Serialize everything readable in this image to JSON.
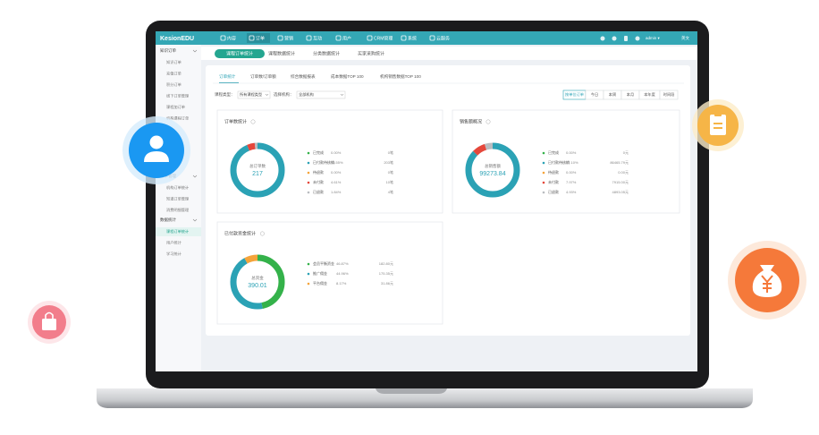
{
  "nav": {
    "brand": "KesionEDU",
    "items": [
      "内容",
      "订单",
      "营销",
      "互动",
      "用户",
      "CRM管理",
      "系统",
      "云服务"
    ],
    "active": 1,
    "user": "admin ▾",
    "lang": "英文"
  },
  "sidebar": {
    "groups": [
      {
        "title": "知识订单",
        "items": [
          "知识订单",
          "充值订单",
          "积分订单",
          "线下订单管理",
          "课程加订单",
          "机构课程订单"
        ]
      },
      {
        "title": "订单管理",
        "items": [
          "机构订单统计",
          "知道订单管理",
          "消费明细管理"
        ]
      },
      {
        "title": "数据统计",
        "items": [
          "课程订单统计",
          "用户统计",
          "学习统计"
        ],
        "active": 0
      }
    ]
  },
  "tabs": {
    "items": [
      "课程订单统计",
      "课程数据统计",
      "分类数据统计",
      "买家采购统计"
    ],
    "active": 0
  },
  "subtabs": {
    "items": [
      "订单统计",
      "订单数/订单额",
      "综合数据报表",
      "成本数据TOP 100",
      "机构销售数据TOP 100"
    ],
    "active": 0
  },
  "filters": [
    {
      "label": "课程类型：",
      "value": "所有课程类型"
    },
    {
      "label": "选择机构：",
      "value": "全部机构"
    }
  ],
  "ranges": {
    "items": [
      "按单位订单",
      "今日",
      "本周",
      "本月",
      "本年度",
      "时间段"
    ],
    "active": 0
  },
  "cards": [
    {
      "title": "订单数统计",
      "center_label": "总订单数",
      "center_value": "217",
      "segments": [
        {
          "name": "已完成",
          "color": "#34b24a",
          "value": 0,
          "label": "0.00%",
          "amount": "0笔"
        },
        {
          "name": "已付款待核销",
          "color": "#2ba2b5",
          "value": 93.55,
          "label": "93.55%",
          "amount": "203笔"
        },
        {
          "name": "待退款",
          "color": "#f5a43a",
          "value": 0,
          "label": "0.00%",
          "amount": "0笔"
        },
        {
          "name": "未付款",
          "color": "#e5473b",
          "value": 4.61,
          "label": "4.61%",
          "amount": "10笔"
        },
        {
          "name": "已退款",
          "color": "#b9bcc0",
          "value": 1.84,
          "label": "1.84%",
          "amount": "4笔"
        }
      ]
    },
    {
      "title": "销售额概况",
      "center_label": "总销售额",
      "center_value": "99273.84",
      "segments": [
        {
          "name": "已完成",
          "color": "#34b24a",
          "value": 0,
          "label": "0.00%",
          "amount": "0元"
        },
        {
          "name": "已付款待核销",
          "color": "#2ba2b5",
          "value": 87.1,
          "label": "87.10%",
          "amount": "86465.79元"
        },
        {
          "name": "待退款",
          "color": "#f5a43a",
          "value": 0,
          "label": "0.00%",
          "amount": "0.00元"
        },
        {
          "name": "未付款",
          "color": "#e5473b",
          "value": 7.97,
          "label": "7.97%",
          "amount": "7915.00元"
        },
        {
          "name": "已退款",
          "color": "#b9bcc0",
          "value": 4.93,
          "label": "4.93%",
          "amount": "4893.05元"
        }
      ]
    },
    {
      "title": "已付款资金统计",
      "center_label": "总资金",
      "center_value": "390.01",
      "segments": [
        {
          "name": "会员平衡资金",
          "color": "#34b24a",
          "value": 46.87,
          "label": "46.87%",
          "amount": "182.80元"
        },
        {
          "name": "推广佣金",
          "color": "#2ba2b5",
          "value": 44.96,
          "label": "44.96%",
          "amount": "175.35元"
        },
        {
          "name": "平台佣金",
          "color": "#f5a43a",
          "value": 8.17,
          "label": "8.17%",
          "amount": "31.86元"
        }
      ]
    }
  ]
}
